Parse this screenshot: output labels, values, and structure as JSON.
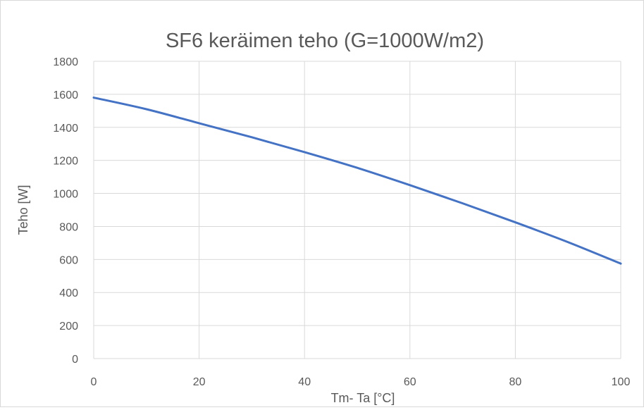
{
  "chart_data": {
    "type": "line",
    "title": "SF6 keräimen teho (G=1000W/m2)",
    "xlabel": "Tm- Ta [°C]",
    "ylabel": "Teho  [W]",
    "xlim": [
      0,
      100
    ],
    "ylim": [
      0,
      1800
    ],
    "x_ticks": [
      0,
      20,
      40,
      60,
      80,
      100
    ],
    "y_ticks": [
      0,
      200,
      400,
      600,
      800,
      1000,
      1200,
      1400,
      1600,
      1800
    ],
    "grid": true,
    "legend": "none",
    "colors": {
      "series": "#4472c4",
      "grid": "#d9d9d9",
      "text": "#595959"
    },
    "series": [
      {
        "x": [
          0,
          10,
          20,
          30,
          40,
          50,
          60,
          70,
          80,
          90,
          100
        ],
        "values": [
          1580,
          1510,
          1425,
          1340,
          1250,
          1155,
          1050,
          940,
          825,
          705,
          575
        ]
      }
    ]
  }
}
